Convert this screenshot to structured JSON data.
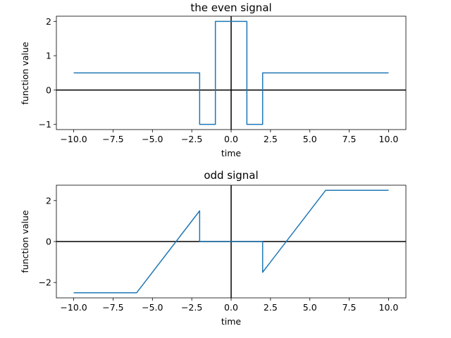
{
  "chart_data": [
    {
      "type": "line",
      "title": "the even signal",
      "xlabel": "time",
      "ylabel": "function value",
      "xlim": [
        -11.1,
        11.1
      ],
      "ylim": [
        -1.15,
        2.15
      ],
      "xticks": [
        -10.0,
        -7.5,
        -5.0,
        -2.5,
        0.0,
        2.5,
        5.0,
        7.5,
        10.0
      ],
      "xtick_labels": [
        "−10.0",
        "−7.5",
        "−5.0",
        "−2.5",
        "0.0",
        "2.5",
        "5.0",
        "7.5",
        "10.0"
      ],
      "yticks": [
        -1,
        0,
        1,
        2
      ],
      "ytick_labels": [
        "−1",
        "0",
        "1",
        "2"
      ],
      "reference_lines": {
        "x": 0,
        "y": 0,
        "color": "#000000"
      },
      "grid": false,
      "series": [
        {
          "color": "#1f77b4",
          "x": [
            -10,
            -2,
            -2,
            -1,
            -1,
            1,
            1,
            2,
            2,
            10
          ],
          "y": [
            0.5,
            0.5,
            -1,
            -1,
            2,
            2,
            -1,
            -1,
            0.5,
            0.5
          ]
        }
      ]
    },
    {
      "type": "line",
      "title": "odd signal",
      "xlabel": "time",
      "ylabel": "function value",
      "xlim": [
        -11.1,
        11.1
      ],
      "ylim": [
        -2.75,
        2.75
      ],
      "xticks": [
        -10.0,
        -7.5,
        -5.0,
        -2.5,
        0.0,
        2.5,
        5.0,
        7.5,
        10.0
      ],
      "xtick_labels": [
        "−10.0",
        "−7.5",
        "−5.0",
        "−2.5",
        "0.0",
        "2.5",
        "5.0",
        "7.5",
        "10.0"
      ],
      "yticks": [
        -2,
        0,
        2
      ],
      "ytick_labels": [
        "−2",
        "0",
        "2"
      ],
      "reference_lines": {
        "x": 0,
        "y": 0,
        "color": "#000000"
      },
      "grid": false,
      "series": [
        {
          "color": "#1f77b4",
          "x": [
            -10,
            -6,
            -2,
            -2,
            2,
            2,
            6,
            10
          ],
          "y": [
            -2.5,
            -2.5,
            1.5,
            0,
            0,
            -1.5,
            2.5,
            2.5
          ]
        }
      ]
    }
  ]
}
